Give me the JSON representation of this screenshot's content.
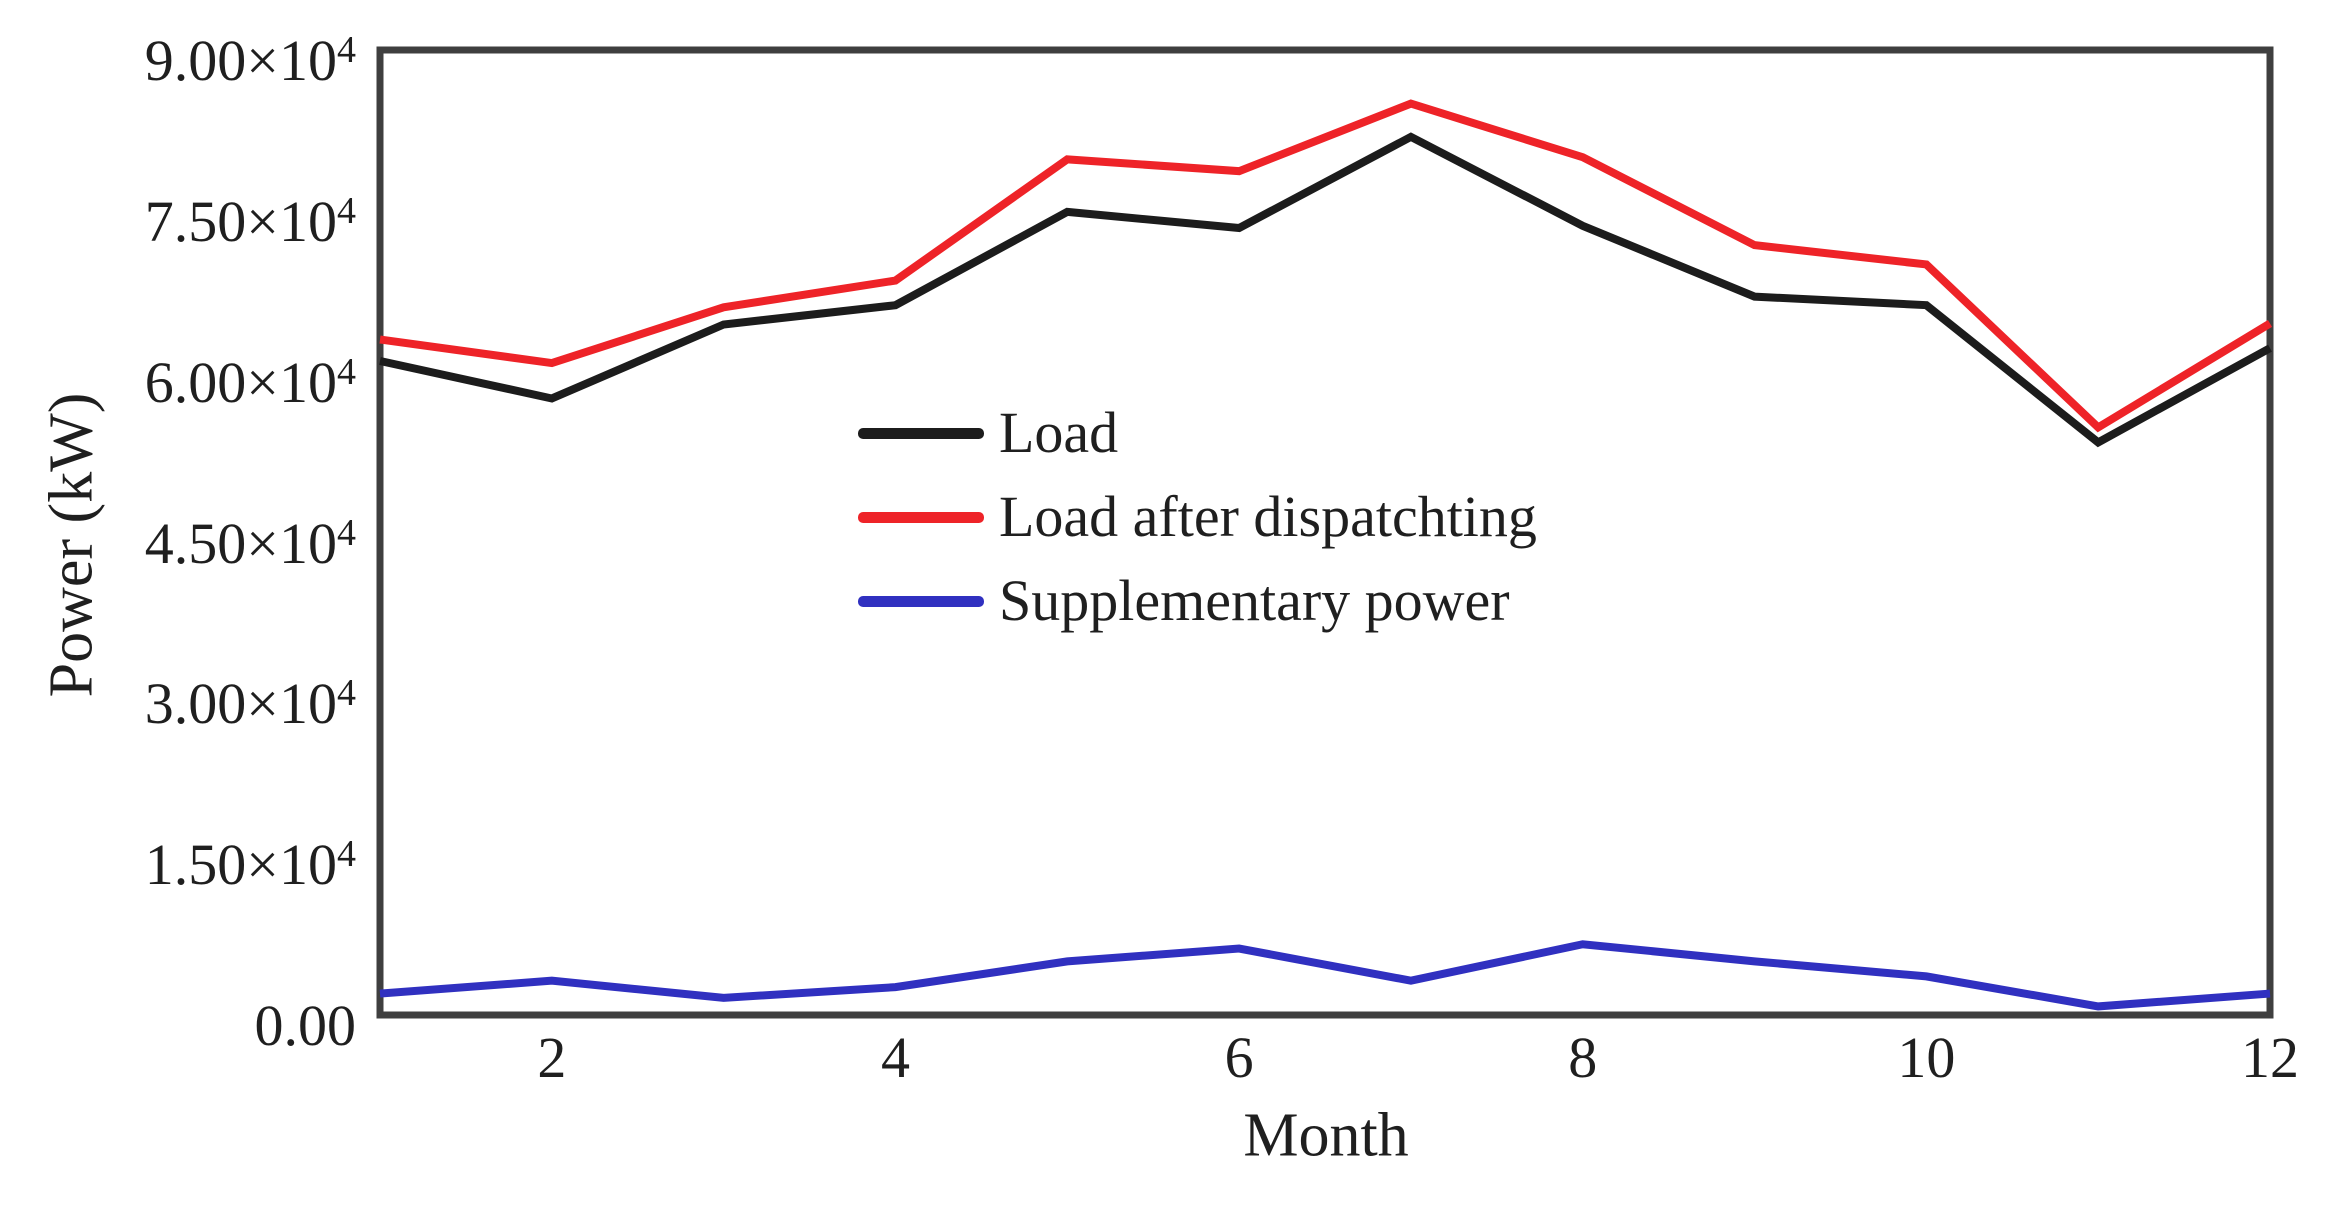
{
  "figure": {
    "background_color": "#ffffff",
    "frame_color": "#3f3f3f",
    "text_color": "#1f1f1f"
  },
  "chart_data": {
    "type": "line",
    "title": "",
    "xlabel": "Month",
    "ylabel": "Power (kW)",
    "xlim": [
      1,
      12
    ],
    "ylim": [
      0,
      90000
    ],
    "grid": false,
    "legend_position": "center-left inside plot, no border",
    "x": [
      1,
      2,
      3,
      4,
      5,
      6,
      7,
      8,
      9,
      10,
      11,
      12
    ],
    "xticks": [
      2,
      4,
      6,
      8,
      10,
      12
    ],
    "yticks": [
      {
        "v": 0,
        "text": "0.00",
        "sup": ""
      },
      {
        "v": 15000,
        "text": "1.50×10",
        "sup": "4"
      },
      {
        "v": 30000,
        "text": "3.00×10",
        "sup": "4"
      },
      {
        "v": 45000,
        "text": "4.50×10",
        "sup": "4"
      },
      {
        "v": 60000,
        "text": "6.00×10",
        "sup": "4"
      },
      {
        "v": 75000,
        "text": "7.50×10",
        "sup": "4"
      },
      {
        "v": 90000,
        "text": "9.00×10",
        "sup": "4"
      }
    ],
    "series": [
      {
        "name": "Load",
        "color": "#1c1c1c",
        "values": [
          61000,
          57500,
          64400,
          66200,
          74900,
          73400,
          81900,
          73600,
          67000,
          66200,
          53400,
          62200
        ]
      },
      {
        "name": "Load after dispatchting",
        "color": "#ee2328",
        "values": [
          63000,
          60800,
          66000,
          68500,
          79800,
          78700,
          85000,
          80000,
          71800,
          70000,
          54800,
          64500
        ]
      },
      {
        "name": "Supplementary power",
        "color": "#3030c0",
        "values": [
          2000,
          3200,
          1600,
          2600,
          5000,
          6200,
          3200,
          6600,
          5000,
          3600,
          800,
          2000
        ]
      }
    ]
  }
}
